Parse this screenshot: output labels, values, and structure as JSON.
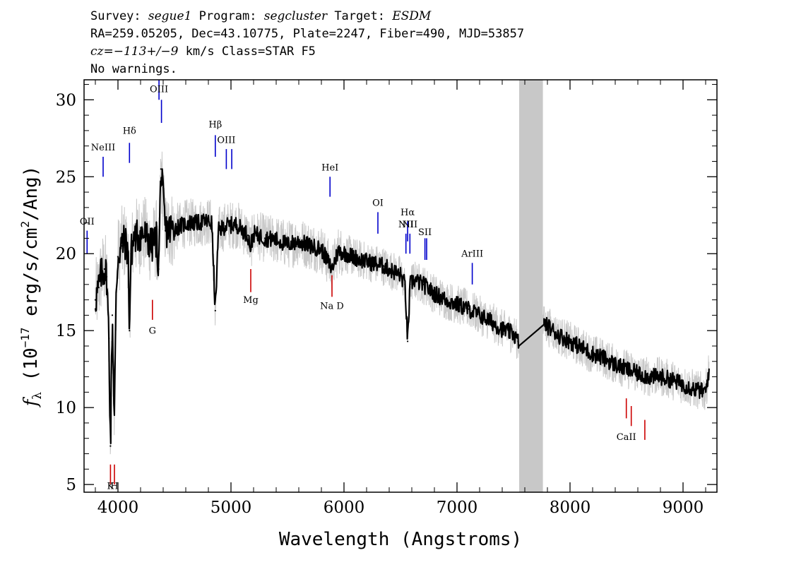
{
  "header": {
    "line1": {
      "survey_label": "Survey: ",
      "survey": "segue1",
      "program_label": " Program: ",
      "program": "segcluster",
      "target_label": " Target: ",
      "target": "ESDM"
    },
    "line2": "RA=259.05205, Dec=43.10775, Plate=2247, Fiber=490, MJD=53857",
    "line3": {
      "cz": "cz=−113+/−9",
      "rest": " km/s Class=STAR F5"
    },
    "line4": "No warnings."
  },
  "chart_data": {
    "type": "line",
    "xlabel": "Wavelength (Angstroms)",
    "ylabel": {
      "prefix": "f",
      "sub": "λ",
      "unit_open": " (10",
      "exp": "−17",
      "unit_mid": " erg/s/cm",
      "exp2": "2",
      "unit_close": "/Ang)"
    },
    "xlim": [
      3700,
      9300
    ],
    "ylim": [
      4.5,
      31.3
    ],
    "x_ticks": [
      4000,
      5000,
      6000,
      7000,
      8000,
      9000
    ],
    "x_tick_labels": [
      "4000",
      "5000",
      "6000",
      "7000",
      "8000",
      "9000"
    ],
    "y_ticks": [
      5,
      10,
      15,
      20,
      25,
      30
    ],
    "y_tick_labels": [
      "5",
      "10",
      "15",
      "20",
      "25",
      "30"
    ],
    "masked_region": [
      7550,
      7760
    ],
    "gap": [
      7550,
      7760
    ],
    "series": [
      {
        "role": "flux",
        "x": [
          3800,
          3830,
          3850,
          3880,
          3900,
          3920,
          3934,
          3950,
          3968,
          3985,
          4000,
          4030,
          4060,
          4090,
          4102,
          4115,
          4140,
          4180,
          4220,
          4260,
          4300,
          4340,
          4360,
          4380,
          4420,
          4480,
          4550,
          4620,
          4700,
          4780,
          4830,
          4861,
          4890,
          4950,
          5050,
          5150,
          5172,
          5200,
          5300,
          5400,
          5500,
          5600,
          5700,
          5800,
          5893,
          5950,
          6050,
          6150,
          6250,
          6350,
          6450,
          6500,
          6540,
          6563,
          6585,
          6620,
          6700,
          6800,
          6900,
          7000,
          7100,
          7200,
          7300,
          7400,
          7500,
          7540,
          7770,
          7800,
          7900,
          8000,
          8100,
          8200,
          8300,
          8400,
          8500,
          8600,
          8700,
          8800,
          8900,
          9000,
          9100,
          9200,
          9230
        ],
        "y": [
          17.0,
          17.8,
          18.6,
          19.0,
          18.5,
          14.5,
          7.5,
          16.0,
          9.5,
          17.5,
          19.8,
          20.5,
          20.8,
          20.2,
          15.0,
          20.0,
          21.0,
          21.2,
          21.3,
          21.0,
          20.5,
          21.0,
          19.0,
          25.5,
          21.5,
          21.6,
          21.8,
          22.0,
          22.0,
          22.1,
          22.0,
          16.3,
          21.5,
          21.8,
          21.9,
          21.2,
          20.4,
          21.3,
          21.0,
          20.9,
          20.6,
          20.8,
          20.5,
          20.3,
          19.0,
          20.2,
          19.9,
          19.6,
          19.4,
          19.2,
          18.8,
          18.6,
          18.0,
          14.3,
          18.0,
          18.3,
          18.0,
          17.4,
          17.0,
          16.7,
          16.4,
          16.0,
          15.6,
          15.1,
          14.8,
          14.3,
          15.4,
          15.3,
          14.7,
          14.3,
          13.9,
          13.5,
          13.2,
          12.8,
          12.5,
          12.2,
          12.0,
          12.0,
          11.8,
          11.5,
          11.2,
          11.0,
          12.5
        ]
      }
    ],
    "line_markers": [
      {
        "label": "OII",
        "wavelength": 3727,
        "color": "#0000cc",
        "y_top": 21.5,
        "y_bottom": 20.0,
        "label_y": 21.9
      },
      {
        "label": "NeIII",
        "wavelength": 3869,
        "color": "#0000cc",
        "y_top": 26.3,
        "y_bottom": 25.0,
        "label_y": 26.7
      },
      {
        "label": "Hδ",
        "wavelength": 4102,
        "color": "#0000cc",
        "y_top": 27.2,
        "y_bottom": 25.9,
        "label_y": 27.8
      },
      {
        "label": "OIII",
        "wavelength": 4363,
        "color": "#0000cc",
        "y_top": 31.3,
        "y_bottom": 30.0,
        "label_y": 30.5
      },
      {
        "label": "",
        "wavelength": 4385,
        "color": "#0000cc",
        "y_top": 30.0,
        "y_bottom": 28.5,
        "label_y": 0
      },
      {
        "label": "Hβ",
        "wavelength": 4861,
        "color": "#0000cc",
        "y_top": 27.7,
        "y_bottom": 26.3,
        "label_y": 28.2
      },
      {
        "label": "OIII",
        "wavelength": 4959,
        "color": "#0000cc",
        "y_top": 26.8,
        "y_bottom": 25.5,
        "label_y": 27.2
      },
      {
        "label": "",
        "wavelength": 5007,
        "color": "#0000cc",
        "y_top": 26.8,
        "y_bottom": 25.5,
        "label_y": 0
      },
      {
        "label": "HeI",
        "wavelength": 5876,
        "color": "#0000cc",
        "y_top": 25.0,
        "y_bottom": 23.7,
        "label_y": 25.4
      },
      {
        "label": "OI",
        "wavelength": 6300,
        "color": "#0000cc",
        "y_top": 22.7,
        "y_bottom": 21.3,
        "label_y": 23.1
      },
      {
        "label": "NII",
        "wavelength": 6548,
        "color": "#0000cc",
        "y_top": 21.3,
        "y_bottom": 20.0,
        "label_y": 21.7
      },
      {
        "label": "Hα",
        "wavelength": 6563,
        "color": "#0000cc",
        "y_top": 22.1,
        "y_bottom": 20.8,
        "label_y": 22.5
      },
      {
        "label": "NII",
        "wavelength": 6583,
        "color": "#0000cc",
        "y_top": 21.3,
        "y_bottom": 20.0,
        "label_y": 21.7
      },
      {
        "label": "SII",
        "wavelength": 6716,
        "color": "#0000cc",
        "y_top": 21.0,
        "y_bottom": 19.6,
        "label_y": 21.2
      },
      {
        "label": "",
        "wavelength": 6731,
        "color": "#0000cc",
        "y_top": 21.0,
        "y_bottom": 19.6,
        "label_y": 0
      },
      {
        "label": "ArIII",
        "wavelength": 7135,
        "color": "#0000cc",
        "y_top": 19.4,
        "y_bottom": 18.0,
        "label_y": 19.8
      },
      {
        "label": "K",
        "wavelength": 3934,
        "color": "#cc0000",
        "y_top": 6.3,
        "y_bottom": 5.0,
        "label_y": 4.7
      },
      {
        "label": "H",
        "wavelength": 3969,
        "color": "#cc0000",
        "y_top": 6.3,
        "y_bottom": 5.0,
        "label_y": 4.7
      },
      {
        "label": "G",
        "wavelength": 4305,
        "color": "#cc0000",
        "y_top": 17.0,
        "y_bottom": 15.7,
        "label_y": 14.8
      },
      {
        "label": "Mg",
        "wavelength": 5175,
        "color": "#cc0000",
        "y_top": 19.0,
        "y_bottom": 17.5,
        "label_y": 16.8
      },
      {
        "label": "Na  D",
        "wavelength": 5894,
        "color": "#cc0000",
        "y_top": 18.6,
        "y_bottom": 17.2,
        "label_y": 16.4
      },
      {
        "label": "CaII",
        "wavelength": 8498,
        "color": "#cc0000",
        "y_top": 10.6,
        "y_bottom": 9.3,
        "label_y": 7.9
      },
      {
        "label": "",
        "wavelength": 8542,
        "color": "#cc0000",
        "y_top": 10.1,
        "y_bottom": 8.8,
        "label_y": 0
      },
      {
        "label": "",
        "wavelength": 8662,
        "color": "#cc0000",
        "y_top": 9.2,
        "y_bottom": 7.9,
        "label_y": 0
      }
    ],
    "colors": {
      "flux": "#000000",
      "noise": "#c8c8c8",
      "emission": "#0000cc",
      "absorption": "#cc0000",
      "mask": "#c8c8c8"
    }
  }
}
